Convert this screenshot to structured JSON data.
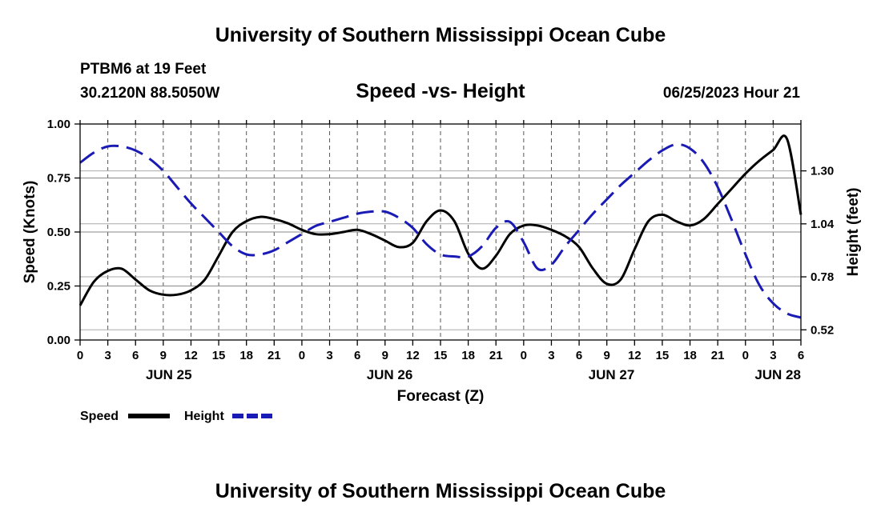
{
  "header": {
    "title": "University of Southern Mississippi Ocean Cube",
    "station": "PTBM6 at 19 Feet",
    "coords": "30.2120N  88.5050W",
    "chart_title": "Speed -vs- Height",
    "date": "06/25/2023 Hour 21"
  },
  "footer": {
    "title": "University of Southern Mississippi Ocean Cube"
  },
  "legend": {
    "speed_label": "Speed",
    "height_label": "Height",
    "speed_color": "#000000",
    "height_color": "#1a1ab4"
  },
  "chart_data": {
    "type": "line",
    "title": "Speed -vs- Height",
    "xlabel": "Forecast (Z)",
    "ylabel": "Speed (Knots)",
    "y2label": "Height (feet)",
    "xlim": [
      0,
      78
    ],
    "ylim": [
      0,
      1.0
    ],
    "y2lim": [
      0.47,
      1.53
    ],
    "x_ticks": [
      0,
      3,
      6,
      9,
      12,
      15,
      18,
      21,
      24,
      27,
      30,
      33,
      36,
      39,
      42,
      45,
      48,
      51,
      54,
      57,
      60,
      63,
      66,
      69,
      72,
      75,
      78
    ],
    "x_tick_labels": [
      "0",
      "3",
      "6",
      "9",
      "12",
      "15",
      "18",
      "21",
      "0",
      "3",
      "6",
      "9",
      "12",
      "15",
      "18",
      "21",
      "0",
      "3",
      "6",
      "9",
      "12",
      "15",
      "18",
      "21",
      "0",
      "3",
      "6"
    ],
    "date_labels": [
      {
        "x": 9.6,
        "label": "JUN 25"
      },
      {
        "x": 33.5,
        "label": "JUN 26"
      },
      {
        "x": 57.5,
        "label": "JUN 27"
      },
      {
        "x": 75.5,
        "label": "JUN 28"
      }
    ],
    "y_ticks": [
      0.0,
      0.25,
      0.5,
      0.75,
      1.0
    ],
    "y_tick_labels": [
      "0.00",
      "0.25",
      "0.50",
      "0.75",
      "1.00"
    ],
    "y2_ticks": [
      0.52,
      0.78,
      1.04,
      1.3
    ],
    "y2_tick_labels": [
      "0.52",
      "0.78",
      "1.04",
      "1.30"
    ],
    "series": [
      {
        "name": "Speed",
        "axis": "left",
        "style": "solid",
        "color": "#000000",
        "x": [
          0,
          1.5,
          3,
          4.5,
          6,
          7.5,
          9,
          10.5,
          12,
          13.5,
          15,
          16.5,
          18,
          19.5,
          21,
          22.5,
          24,
          25.5,
          27,
          28.5,
          30,
          31.5,
          33,
          34.5,
          36,
          37.5,
          39,
          40.5,
          42,
          43.5,
          45,
          46.5,
          48,
          49.5,
          51,
          52.5,
          54,
          55.5,
          57,
          58.5,
          60,
          61.5,
          63,
          64.5,
          66,
          67.5,
          69,
          70.5,
          72,
          73.5,
          75,
          76.5,
          78
        ],
        "values": [
          0.16,
          0.27,
          0.32,
          0.33,
          0.28,
          0.23,
          0.21,
          0.21,
          0.23,
          0.28,
          0.39,
          0.5,
          0.55,
          0.57,
          0.56,
          0.54,
          0.51,
          0.49,
          0.49,
          0.5,
          0.51,
          0.49,
          0.46,
          0.43,
          0.45,
          0.55,
          0.6,
          0.55,
          0.4,
          0.33,
          0.39,
          0.49,
          0.53,
          0.53,
          0.51,
          0.48,
          0.43,
          0.33,
          0.26,
          0.28,
          0.42,
          0.55,
          0.58,
          0.55,
          0.53,
          0.56,
          0.63,
          0.7,
          0.77,
          0.83,
          0.88,
          0.93,
          0.58
        ]
      },
      {
        "name": "Height",
        "axis": "right",
        "style": "dashed",
        "color": "#1a1ab4",
        "x": [
          0,
          1.5,
          3,
          4.5,
          6,
          7.5,
          9,
          10.5,
          12,
          13.5,
          15,
          16.5,
          18,
          19.5,
          21,
          22.5,
          24,
          25.5,
          27,
          28.5,
          30,
          31.5,
          33,
          34.5,
          36,
          37.5,
          39,
          40.5,
          42,
          43.5,
          45,
          46.5,
          48,
          49.5,
          51,
          52.5,
          54,
          55.5,
          57,
          58.5,
          60,
          61.5,
          63,
          64.5,
          66,
          67.5,
          69,
          70.5,
          72,
          73.5,
          75,
          76.5,
          78
        ],
        "values": [
          1.34,
          1.39,
          1.42,
          1.42,
          1.4,
          1.36,
          1.3,
          1.22,
          1.14,
          1.07,
          1.0,
          0.93,
          0.89,
          0.89,
          0.91,
          0.95,
          0.99,
          1.03,
          1.05,
          1.07,
          1.09,
          1.1,
          1.1,
          1.07,
          1.02,
          0.94,
          0.89,
          0.88,
          0.88,
          0.93,
          1.02,
          1.05,
          0.95,
          0.82,
          0.84,
          0.93,
          1.01,
          1.09,
          1.16,
          1.23,
          1.29,
          1.35,
          1.4,
          1.43,
          1.41,
          1.34,
          1.22,
          1.06,
          0.89,
          0.74,
          0.65,
          0.6,
          0.58
        ]
      }
    ]
  }
}
